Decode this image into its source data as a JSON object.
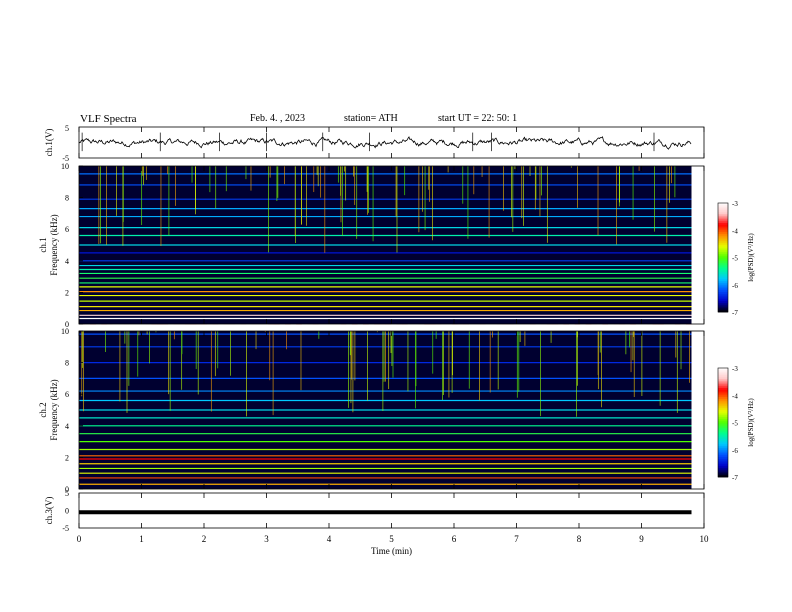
{
  "header": {
    "title": "VLF  Spectra",
    "date": "Feb. 4. , 2023",
    "station": "station= ATH",
    "start": "start  UT  =    22: 50: 1"
  },
  "colors": {
    "waveform": "#000000",
    "colorscale": [
      "#000000",
      "#0000c8",
      "#0050ff",
      "#00c8ff",
      "#00ff90",
      "#50ff00",
      "#e6ff00",
      "#ff9000",
      "#ff0000",
      "#ffc8c8",
      "#ffffff"
    ]
  },
  "chart_data": [
    {
      "type": "line",
      "name": "ch1-waveform",
      "ylabel": "ch.1(V)",
      "ylim": [
        -5,
        5
      ],
      "yticks": [
        "5",
        "-5"
      ],
      "x_range_min": [
        0,
        9.8
      ],
      "amplitude_approx": 1.0,
      "spike_times_min": [
        0.05,
        1.3,
        2.25,
        3.0,
        3.9,
        4.65,
        6.3,
        6.6,
        9.2
      ]
    },
    {
      "type": "heatmap",
      "name": "ch1-spectrogram",
      "ylabel": "ch.1\nFrequency  (kHz)",
      "ylim": [
        0,
        10
      ],
      "yticks": [
        "0",
        "2",
        "4",
        "6",
        "8",
        "10"
      ],
      "x_range_min": [
        0,
        9.8
      ],
      "colorbar": {
        "label": "log(PSD)(V²/Hz)",
        "range": [
          -7,
          -3
        ],
        "ticks": [
          "-3",
          "-4",
          "-5",
          "-6",
          "-7"
        ]
      },
      "bands_khz": [
        {
          "f": 0.35,
          "level": -3.3
        },
        {
          "f": 0.55,
          "level": -3.6
        },
        {
          "f": 0.85,
          "level": -4.6
        },
        {
          "f": 1.1,
          "level": -4.8
        },
        {
          "f": 1.45,
          "level": -5.0
        },
        {
          "f": 1.8,
          "level": -4.9
        },
        {
          "f": 2.05,
          "level": -4.5
        },
        {
          "f": 2.35,
          "level": -4.9
        },
        {
          "f": 2.6,
          "level": -5.6
        },
        {
          "f": 2.9,
          "level": -5.5
        },
        {
          "f": 3.2,
          "level": -5.6
        },
        {
          "f": 3.45,
          "level": -5.8
        },
        {
          "f": 3.7,
          "level": -6.0
        },
        {
          "f": 4.0,
          "level": -6.6
        },
        {
          "f": 4.5,
          "level": -6.8
        },
        {
          "f": 5.0,
          "level": -6.0
        },
        {
          "f": 5.6,
          "level": -5.8
        },
        {
          "f": 6.1,
          "level": -6.0
        },
        {
          "f": 6.8,
          "level": -6.2
        },
        {
          "f": 7.3,
          "level": -6.2
        },
        {
          "f": 7.9,
          "level": -6.6
        },
        {
          "f": 8.8,
          "level": -6.5
        },
        {
          "f": 9.5,
          "level": -6.4
        }
      ]
    },
    {
      "type": "heatmap",
      "name": "ch2-spectrogram",
      "ylabel": "ch.2\nFrequency  (kHz)",
      "ylim": [
        0,
        10
      ],
      "yticks": [
        "0",
        "2",
        "4",
        "6",
        "8",
        "10"
      ],
      "x_range_min": [
        0,
        9.8
      ],
      "colorbar": {
        "label": "log(PSD)(V²/Hz)",
        "range": [
          -7,
          -3
        ],
        "ticks": [
          "-3",
          "-4",
          "-5",
          "-6",
          "-7"
        ]
      },
      "bands_khz": [
        {
          "f": 0.3,
          "level": -4.6
        },
        {
          "f": 0.7,
          "level": -4.3
        },
        {
          "f": 1.0,
          "level": -4.9
        },
        {
          "f": 1.3,
          "level": -5.1
        },
        {
          "f": 1.6,
          "level": -4.7
        },
        {
          "f": 1.9,
          "level": -4.1
        },
        {
          "f": 2.1,
          "level": -4.4
        },
        {
          "f": 2.5,
          "level": -5.1
        },
        {
          "f": 3.0,
          "level": -5.3
        },
        {
          "f": 3.5,
          "level": -5.5
        },
        {
          "f": 4.0,
          "level": -5.7
        },
        {
          "f": 4.5,
          "level": -5.9
        },
        {
          "f": 5.0,
          "level": -6.0
        },
        {
          "f": 5.6,
          "level": -6.1
        },
        {
          "f": 6.2,
          "level": -6.3
        },
        {
          "f": 7.0,
          "level": -6.5
        },
        {
          "f": 8.0,
          "level": -6.7
        },
        {
          "f": 9.0,
          "level": -6.6
        },
        {
          "f": 9.8,
          "level": -6.5
        }
      ]
    },
    {
      "type": "line",
      "name": "ch3-waveform",
      "ylabel": "ch.3(V)",
      "ylim": [
        -5,
        5
      ],
      "yticks": [
        "5",
        "0",
        "-5"
      ],
      "x_range_min": [
        0,
        9.8
      ],
      "level_v": -0.5,
      "xlabel": "Time  (min)",
      "xlim": [
        0,
        10
      ],
      "xticks": [
        "0",
        "1",
        "2",
        "3",
        "4",
        "5",
        "6",
        "7",
        "8",
        "9",
        "10"
      ]
    }
  ]
}
